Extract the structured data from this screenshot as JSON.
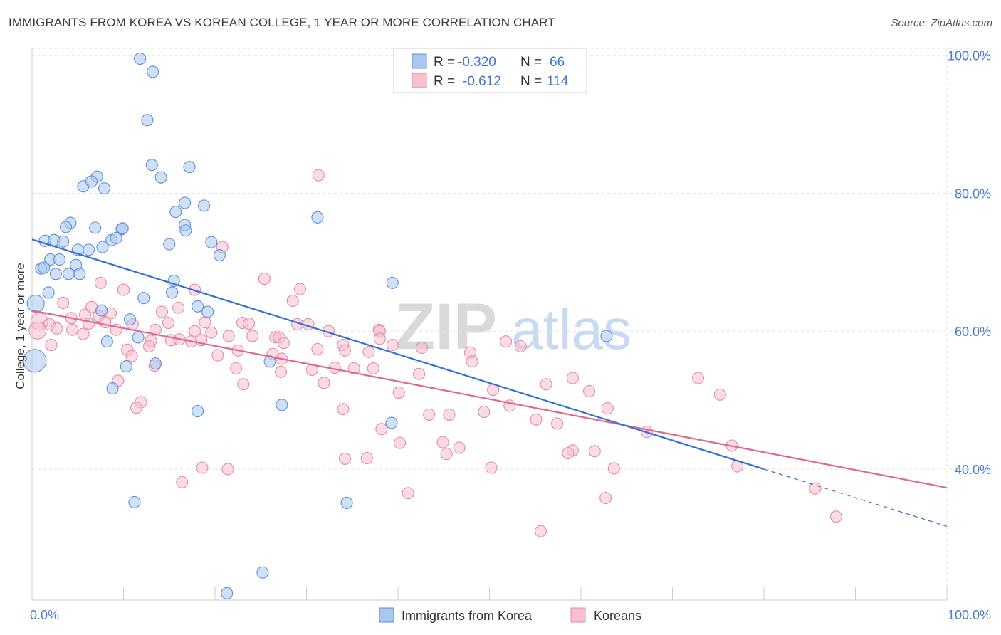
{
  "title": "IMMIGRANTS FROM KOREA VS KOREAN COLLEGE, 1 YEAR OR MORE CORRELATION CHART",
  "source": "Source: ZipAtlas.com",
  "watermark": {
    "zip": "ZIP",
    "atlas": "atlas"
  },
  "colors": {
    "blue_fill": "#a9c8f0",
    "blue_stroke": "#5b8fd8",
    "blue_line": "#2f6fd6",
    "pink_fill": "#f7bfd0",
    "pink_stroke": "#e68aa8",
    "pink_line": "#e0678f",
    "axis_label": "#4a7bd0",
    "grid": "#e3e3e3"
  },
  "legend": {
    "rows": [
      {
        "r_label": "R =",
        "r_value": "-0.320",
        "n_label": "N =",
        "n_value": "66",
        "series": "blue"
      },
      {
        "r_label": "R =",
        "r_value": "-0.612",
        "n_label": "N =",
        "n_value": "114",
        "series": "pink"
      }
    ]
  },
  "bottom_legend": [
    "Immigrants from Korea",
    "Koreans"
  ],
  "chart_data": {
    "type": "scatter",
    "title": "IMMIGRANTS FROM KOREA VS KOREAN COLLEGE, 1 YEAR OR MORE CORRELATION CHART",
    "xlabel": "",
    "ylabel": "College, 1 year or more",
    "xlim": [
      0,
      100
    ],
    "ylim": [
      21,
      101
    ],
    "x_tick_labels": [
      "0.0%",
      "100.0%"
    ],
    "y_ticks": [
      40,
      60,
      80,
      100
    ],
    "y_tick_labels": [
      "40.0%",
      "60.0%",
      "80.0%",
      "100.0%"
    ],
    "grid": true,
    "legend_position": "top-center",
    "series": [
      {
        "name": "Immigrants from Korea",
        "color": "blue",
        "trend": {
          "x": [
            0,
            80
          ],
          "y": [
            73.3,
            40.0
          ]
        },
        "trend_dashed": {
          "x": [
            80,
            100
          ],
          "y": [
            40.0,
            31.7
          ]
        },
        "points": [
          [
            11.8,
            99.5,
            1
          ],
          [
            13.2,
            97.6,
            1
          ],
          [
            12.6,
            90.6,
            1
          ],
          [
            13.1,
            84.1,
            1
          ],
          [
            14.1,
            82.3,
            1
          ],
          [
            7.1,
            82.4,
            1
          ],
          [
            5.6,
            81.0,
            1
          ],
          [
            6.5,
            81.7,
            1
          ],
          [
            7.9,
            80.7,
            1
          ],
          [
            17.2,
            83.8,
            1
          ],
          [
            16.7,
            78.6,
            1
          ],
          [
            18.8,
            78.2,
            1
          ],
          [
            15.7,
            77.3,
            1
          ],
          [
            31.2,
            76.5,
            1
          ],
          [
            4.2,
            75.7,
            1
          ],
          [
            3.7,
            75.1,
            1
          ],
          [
            6.9,
            75.0,
            1
          ],
          [
            9.8,
            74.8,
            1
          ],
          [
            9.9,
            74.9,
            1
          ],
          [
            16.7,
            75.4,
            1
          ],
          [
            16.8,
            74.6,
            1
          ],
          [
            1.4,
            73.1,
            1
          ],
          [
            2.4,
            73.2,
            1
          ],
          [
            3.4,
            73.0,
            1
          ],
          [
            8.7,
            73.2,
            1
          ],
          [
            9.2,
            73.5,
            1
          ],
          [
            15.0,
            72.6,
            1
          ],
          [
            19.6,
            72.9,
            1
          ],
          [
            5.0,
            71.8,
            1
          ],
          [
            6.2,
            71.8,
            1
          ],
          [
            7.7,
            72.2,
            1
          ],
          [
            20.5,
            71.0,
            1
          ],
          [
            2.0,
            70.4,
            1
          ],
          [
            3.0,
            70.4,
            1
          ],
          [
            1.0,
            69.1,
            1
          ],
          [
            1.3,
            69.2,
            1
          ],
          [
            4.8,
            69.6,
            1
          ],
          [
            2.6,
            68.3,
            1
          ],
          [
            4.0,
            68.3,
            1
          ],
          [
            5.2,
            68.3,
            1
          ],
          [
            15.5,
            67.3,
            1
          ],
          [
            39.4,
            67.0,
            1
          ],
          [
            1.8,
            65.6,
            1
          ],
          [
            15.3,
            65.6,
            1
          ],
          [
            12.2,
            64.8,
            1
          ],
          [
            0.4,
            64.0,
            2
          ],
          [
            7.6,
            63.0,
            1
          ],
          [
            18.1,
            63.6,
            1
          ],
          [
            19.2,
            62.8,
            1
          ],
          [
            10.7,
            61.7,
            1
          ],
          [
            11.6,
            59.1,
            1
          ],
          [
            8.2,
            58.5,
            1
          ],
          [
            62.8,
            59.3,
            1
          ],
          [
            0.3,
            55.7,
            3
          ],
          [
            10.3,
            54.9,
            1
          ],
          [
            13.5,
            55.3,
            1
          ],
          [
            26.0,
            55.6,
            1
          ],
          [
            8.8,
            51.7,
            1
          ],
          [
            27.3,
            49.3,
            1
          ],
          [
            18.1,
            48.4,
            1
          ],
          [
            39.3,
            46.7,
            1
          ],
          [
            11.2,
            35.2,
            1
          ],
          [
            34.4,
            35.1,
            1
          ],
          [
            25.2,
            25.0,
            1
          ],
          [
            21.3,
            22.0,
            1
          ]
        ]
      },
      {
        "name": "Koreans",
        "color": "pink",
        "trend": {
          "x": [
            0,
            100
          ],
          "y": [
            63.0,
            37.3
          ]
        },
        "points": [
          [
            31.3,
            82.6,
            1
          ],
          [
            20.8,
            72.2,
            1
          ],
          [
            25.4,
            67.6,
            1
          ],
          [
            29.3,
            66.1,
            1
          ],
          [
            7.5,
            67.0,
            1
          ],
          [
            10.0,
            66.0,
            1
          ],
          [
            17.8,
            66.0,
            1
          ],
          [
            28.5,
            64.4,
            1
          ],
          [
            3.4,
            64.1,
            1
          ],
          [
            6.5,
            63.5,
            1
          ],
          [
            8.6,
            62.6,
            1
          ],
          [
            5.8,
            62.4,
            1
          ],
          [
            7.3,
            62.2,
            1
          ],
          [
            14.2,
            62.8,
            1
          ],
          [
            16.0,
            63.4,
            1
          ],
          [
            0.8,
            61.4,
            2
          ],
          [
            1.9,
            61.0,
            1
          ],
          [
            4.3,
            61.9,
            1
          ],
          [
            6.2,
            61.1,
            1
          ],
          [
            8.0,
            61.3,
            1
          ],
          [
            11.0,
            61.0,
            1
          ],
          [
            14.9,
            61.2,
            1
          ],
          [
            18.9,
            61.3,
            1
          ],
          [
            23.0,
            61.2,
            1
          ],
          [
            23.7,
            61.1,
            1
          ],
          [
            29.0,
            61.0,
            1
          ],
          [
            30.2,
            61.0,
            1
          ],
          [
            0.6,
            60.1,
            2
          ],
          [
            2.7,
            60.4,
            1
          ],
          [
            4.4,
            60.2,
            1
          ],
          [
            9.2,
            60.2,
            1
          ],
          [
            13.5,
            60.2,
            1
          ],
          [
            17.8,
            60.0,
            1
          ],
          [
            19.6,
            59.8,
            1
          ],
          [
            21.5,
            59.3,
            1
          ],
          [
            24.1,
            59.3,
            1
          ],
          [
            26.6,
            59.1,
            1
          ],
          [
            27.0,
            59.1,
            1
          ],
          [
            32.4,
            60.0,
            1
          ],
          [
            37.9,
            60.2,
            1
          ],
          [
            38.0,
            60.0,
            1
          ],
          [
            5.6,
            59.6,
            1
          ],
          [
            13.0,
            58.6,
            1
          ],
          [
            15.2,
            58.7,
            1
          ],
          [
            16.1,
            58.8,
            1
          ],
          [
            17.4,
            58.5,
            1
          ],
          [
            18.5,
            58.7,
            1
          ],
          [
            27.5,
            58.3,
            1
          ],
          [
            34.0,
            58.0,
            1
          ],
          [
            38.0,
            58.9,
            1
          ],
          [
            39.4,
            58.0,
            1
          ],
          [
            2.1,
            58.0,
            1
          ],
          [
            10.4,
            57.3,
            1
          ],
          [
            12.8,
            57.8,
            1
          ],
          [
            22.5,
            57.2,
            1
          ],
          [
            31.2,
            57.4,
            1
          ],
          [
            34.2,
            57.2,
            1
          ],
          [
            36.8,
            57.0,
            1
          ],
          [
            42.6,
            57.6,
            1
          ],
          [
            47.9,
            56.9,
            1
          ],
          [
            51.8,
            58.5,
            1
          ],
          [
            10.9,
            56.4,
            1
          ],
          [
            20.3,
            56.5,
            1
          ],
          [
            26.3,
            56.7,
            1
          ],
          [
            27.3,
            56.0,
            1
          ],
          [
            48.1,
            55.6,
            1
          ],
          [
            53.4,
            57.8,
            1
          ],
          [
            13.4,
            55.0,
            1
          ],
          [
            22.3,
            54.6,
            1
          ],
          [
            30.6,
            54.4,
            1
          ],
          [
            35.2,
            54.6,
            1
          ],
          [
            33.1,
            54.7,
            1
          ],
          [
            27.2,
            54.1,
            1
          ],
          [
            42.3,
            53.8,
            1
          ],
          [
            59.1,
            53.2,
            1
          ],
          [
            37.3,
            54.6,
            1
          ],
          [
            9.4,
            52.8,
            1
          ],
          [
            23.1,
            52.3,
            1
          ],
          [
            31.9,
            52.5,
            1
          ],
          [
            56.2,
            52.3,
            1
          ],
          [
            60.9,
            51.3,
            1
          ],
          [
            72.8,
            53.2,
            1
          ],
          [
            40.1,
            51.1,
            1
          ],
          [
            50.4,
            51.5,
            1
          ],
          [
            52.2,
            49.2,
            1
          ],
          [
            62.9,
            48.8,
            1
          ],
          [
            75.2,
            50.8,
            1
          ],
          [
            11.9,
            49.7,
            1
          ],
          [
            11.4,
            48.9,
            1
          ],
          [
            49.4,
            48.3,
            1
          ],
          [
            34.0,
            48.7,
            1
          ],
          [
            43.4,
            47.9,
            1
          ],
          [
            45.6,
            47.9,
            1
          ],
          [
            55.1,
            47.2,
            1
          ],
          [
            57.4,
            46.6,
            1
          ],
          [
            38.2,
            45.8,
            1
          ],
          [
            67.2,
            45.4,
            1
          ],
          [
            44.9,
            43.9,
            1
          ],
          [
            40.2,
            43.8,
            1
          ],
          [
            46.7,
            43.1,
            1
          ],
          [
            76.5,
            43.4,
            1
          ],
          [
            59.1,
            42.7,
            1
          ],
          [
            61.5,
            42.6,
            1
          ],
          [
            45.3,
            42.2,
            1
          ],
          [
            58.6,
            42.3,
            1
          ],
          [
            34.2,
            41.5,
            1
          ],
          [
            36.6,
            41.6,
            1
          ],
          [
            63.6,
            40.1,
            1
          ],
          [
            18.6,
            40.2,
            1
          ],
          [
            50.2,
            40.2,
            1
          ],
          [
            21.4,
            40.0,
            1
          ],
          [
            77.1,
            40.4,
            1
          ],
          [
            16.4,
            38.1,
            1
          ],
          [
            85.6,
            37.2,
            1
          ],
          [
            41.1,
            36.5,
            1
          ],
          [
            62.7,
            35.8,
            1
          ],
          [
            87.9,
            33.1,
            1
          ],
          [
            55.6,
            31.0,
            1
          ]
        ]
      }
    ]
  }
}
